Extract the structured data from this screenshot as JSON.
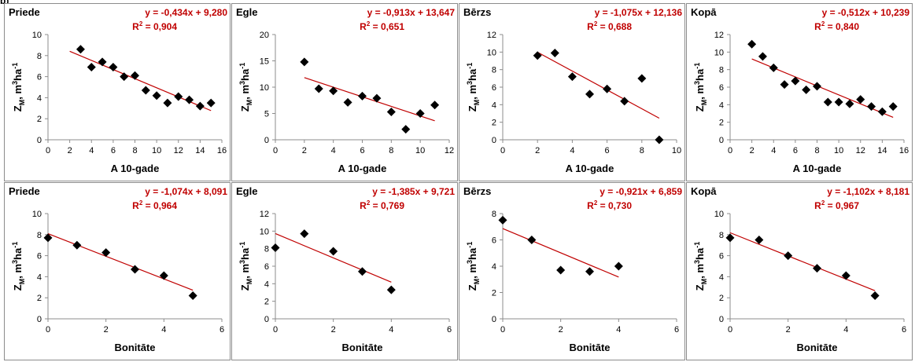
{
  "corner_label": "b)",
  "chart_data": [
    {
      "type": "scatter",
      "title": "Priede",
      "xlabel": "A 10-gade",
      "ylabel": "Z",
      "ylabel_sub": "M",
      "ylabel_unit": ", m",
      "ylabel_sup1": "3",
      "ylabel_ha": "ha",
      "ylabel_sup2": "-1",
      "equation": "y = -0,434x + 9,280",
      "r2_label": "R",
      "r2_sup": "2",
      "r2_value": " = 0,904",
      "xlim": [
        0,
        16
      ],
      "xticks": [
        0,
        2,
        4,
        6,
        8,
        10,
        12,
        14,
        16
      ],
      "ylim": [
        0,
        10
      ],
      "yticks": [
        0,
        2,
        4,
        6,
        8,
        10
      ],
      "x": [
        3,
        4,
        5,
        6,
        7,
        8,
        9,
        10,
        11,
        12,
        13,
        14,
        15
      ],
      "y": [
        8.6,
        6.9,
        7.4,
        6.9,
        6.0,
        6.1,
        4.7,
        4.2,
        3.5,
        4.1,
        3.8,
        3.2,
        3.5
      ],
      "trend": {
        "slope": -0.434,
        "intercept": 9.28,
        "x_range": [
          2,
          15
        ]
      }
    },
    {
      "type": "scatter",
      "title": "Egle",
      "xlabel": "A 10-gade",
      "ylabel": "Z",
      "ylabel_sub": "M",
      "ylabel_unit": ", m",
      "ylabel_sup1": "3",
      "ylabel_ha": "ha",
      "ylabel_sup2": "-1",
      "equation": "y = -0,913x + 13,647",
      "r2_label": "R",
      "r2_sup": "2",
      "r2_value": " = 0,651",
      "xlim": [
        0,
        12
      ],
      "xticks": [
        0,
        2,
        4,
        6,
        8,
        10,
        12
      ],
      "ylim": [
        0,
        20
      ],
      "yticks": [
        0,
        5,
        10,
        15,
        20
      ],
      "x": [
        2,
        3,
        4,
        5,
        6,
        7,
        8,
        9,
        10,
        11
      ],
      "y": [
        14.8,
        9.7,
        9.3,
        7.1,
        8.3,
        7.9,
        5.3,
        2.0,
        5.0,
        6.6
      ],
      "trend": {
        "slope": -0.913,
        "intercept": 13.647,
        "x_range": [
          2,
          11
        ]
      }
    },
    {
      "type": "scatter",
      "title": "Bērzs",
      "xlabel": "A 10-gade",
      "ylabel": "Z",
      "ylabel_sub": "M",
      "ylabel_unit": ", m",
      "ylabel_sup1": "3",
      "ylabel_ha": "ha",
      "ylabel_sup2": "-1",
      "equation": "y = -1,075x + 12,136",
      "r2_label": "R",
      "r2_sup": "2",
      "r2_value": " = 0,688",
      "xlim": [
        0,
        10
      ],
      "xticks": [
        0,
        2,
        4,
        6,
        8,
        10
      ],
      "ylim": [
        0,
        12
      ],
      "yticks": [
        0,
        2,
        4,
        6,
        8,
        10,
        12
      ],
      "x": [
        2,
        3,
        4,
        5,
        6,
        7,
        8,
        9
      ],
      "y": [
        9.6,
        9.9,
        7.2,
        5.2,
        5.8,
        4.4,
        7.0,
        0.0
      ],
      "trend": {
        "slope": -1.075,
        "intercept": 12.136,
        "x_range": [
          2,
          9
        ]
      }
    },
    {
      "type": "scatter",
      "title": "Kopā",
      "xlabel": "A 10-gade",
      "ylabel": "Z",
      "ylabel_sub": "M",
      "ylabel_unit": ", m",
      "ylabel_sup1": "3",
      "ylabel_ha": "ha",
      "ylabel_sup2": "-1",
      "equation": "y = -0,512x + 10,239",
      "r2_label": "R",
      "r2_sup": "2",
      "r2_value": " = 0,840",
      "xlim": [
        0,
        16
      ],
      "xticks": [
        0,
        2,
        4,
        6,
        8,
        10,
        12,
        14,
        16
      ],
      "ylim": [
        0,
        12
      ],
      "yticks": [
        0,
        2,
        4,
        6,
        8,
        10,
        12
      ],
      "x": [
        2,
        3,
        4,
        5,
        6,
        7,
        8,
        9,
        10,
        11,
        12,
        13,
        14,
        15
      ],
      "y": [
        10.9,
        9.5,
        8.2,
        6.3,
        6.7,
        5.7,
        6.1,
        4.3,
        4.3,
        4.1,
        4.6,
        3.8,
        3.2,
        3.8
      ],
      "trend": {
        "slope": -0.512,
        "intercept": 10.239,
        "x_range": [
          2,
          15
        ]
      }
    },
    {
      "type": "scatter",
      "title": "Priede",
      "xlabel": "Bonitāte",
      "ylabel": "Z",
      "ylabel_sub": "M",
      "ylabel_unit": ", m",
      "ylabel_sup1": "3",
      "ylabel_ha": "ha",
      "ylabel_sup2": "-1",
      "equation": "y = -1,074x + 8,091",
      "r2_label": "R",
      "r2_sup": "2",
      "r2_value": " = 0,964",
      "xlim": [
        0,
        6
      ],
      "xticks": [
        0,
        2,
        4,
        6
      ],
      "ylim": [
        0,
        10
      ],
      "yticks": [
        0,
        2,
        4,
        6,
        8,
        10
      ],
      "x": [
        0,
        1,
        2,
        3,
        4,
        5
      ],
      "y": [
        7.7,
        7.0,
        6.3,
        4.7,
        4.1,
        2.2
      ],
      "trend": {
        "slope": -1.074,
        "intercept": 8.091,
        "x_range": [
          0,
          5
        ]
      }
    },
    {
      "type": "scatter",
      "title": "Egle",
      "xlabel": "Bonitāte",
      "ylabel": "Z",
      "ylabel_sub": "M",
      "ylabel_unit": ", m",
      "ylabel_sup1": "3",
      "ylabel_ha": "ha",
      "ylabel_sup2": "-1",
      "equation": "y = -1,385x + 9,721",
      "r2_label": "R",
      "r2_sup": "2",
      "r2_value": " = 0,769",
      "xlim": [
        0,
        6
      ],
      "xticks": [
        0,
        2,
        4,
        6
      ],
      "ylim": [
        0,
        12
      ],
      "yticks": [
        0,
        2,
        4,
        6,
        8,
        10,
        12
      ],
      "x": [
        0,
        1,
        2,
        3,
        4
      ],
      "y": [
        8.1,
        9.7,
        7.7,
        5.4,
        3.3
      ],
      "trend": {
        "slope": -1.385,
        "intercept": 9.721,
        "x_range": [
          0,
          4
        ]
      }
    },
    {
      "type": "scatter",
      "title": "Bērzs",
      "xlabel": "Bonitāte",
      "ylabel": "Z",
      "ylabel_sub": "M",
      "ylabel_unit": ", m",
      "ylabel_sup1": "3",
      "ylabel_ha": "ha",
      "ylabel_sup2": "-1",
      "equation": "y = -0,921x + 6,859",
      "r2_label": "R",
      "r2_sup": "2",
      "r2_value": " = 0,730",
      "xlim": [
        0,
        6
      ],
      "xticks": [
        0,
        2,
        4,
        6
      ],
      "ylim": [
        0,
        8
      ],
      "yticks": [
        0,
        2,
        4,
        6,
        8
      ],
      "x": [
        0,
        1,
        2,
        3,
        4
      ],
      "y": [
        7.5,
        6.0,
        3.7,
        3.6,
        4.0
      ],
      "trend": {
        "slope": -0.921,
        "intercept": 6.859,
        "x_range": [
          0,
          4
        ]
      }
    },
    {
      "type": "scatter",
      "title": "Kopā",
      "xlabel": "Bonitāte",
      "ylabel": "Z",
      "ylabel_sub": "M",
      "ylabel_unit": ", m",
      "ylabel_sup1": "3",
      "ylabel_ha": "ha",
      "ylabel_sup2": "-1",
      "equation": "y = -1,102x + 8,181",
      "r2_label": "R",
      "r2_sup": "2",
      "r2_value": " = 0,967",
      "xlim": [
        0,
        6
      ],
      "xticks": [
        0,
        2,
        4,
        6
      ],
      "ylim": [
        0,
        10
      ],
      "yticks": [
        0,
        2,
        4,
        6,
        8,
        10
      ],
      "x": [
        0,
        1,
        2,
        3,
        4,
        5
      ],
      "y": [
        7.7,
        7.5,
        6.0,
        4.8,
        4.1,
        2.2
      ],
      "trend": {
        "slope": -1.102,
        "intercept": 8.181,
        "x_range": [
          0,
          5
        ]
      }
    }
  ],
  "colors": {
    "trendline": "#c00000",
    "equation_text": "#c00000",
    "marker": "#000000",
    "frame": "#8c8c8c",
    "axis": "#8c8c8c"
  }
}
